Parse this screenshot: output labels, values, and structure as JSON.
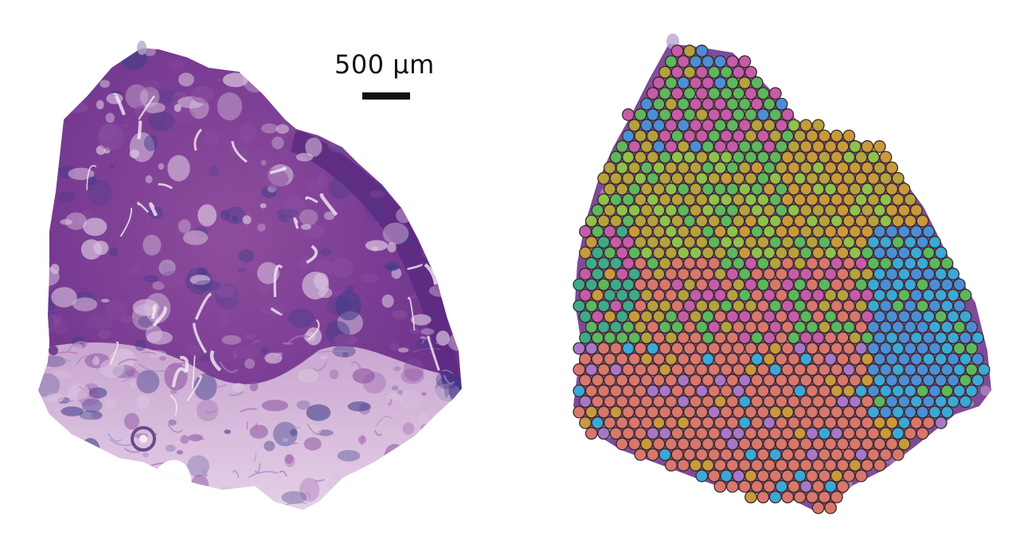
{
  "scale_bar": {
    "label": "500 µm"
  },
  "colors": {
    "he_stain_dark": "#5b2a80",
    "he_stain_mid": "#8a4fa0",
    "he_stain_light": "#d9c2de",
    "he_nuclei": "#3f3d8a",
    "spot_outline": "#3a2a2a"
  },
  "cluster_colors": {
    "salmon": "#d9776b",
    "olive": "#b5a23d",
    "green": "#5cb85c",
    "lime": "#8fc24a",
    "blue": "#4a8fd6",
    "cyan": "#3aa9d6",
    "magenta": "#c65ca8",
    "purple": "#a877c6",
    "ochre": "#c99a3a",
    "teal": "#3daa8a"
  }
}
